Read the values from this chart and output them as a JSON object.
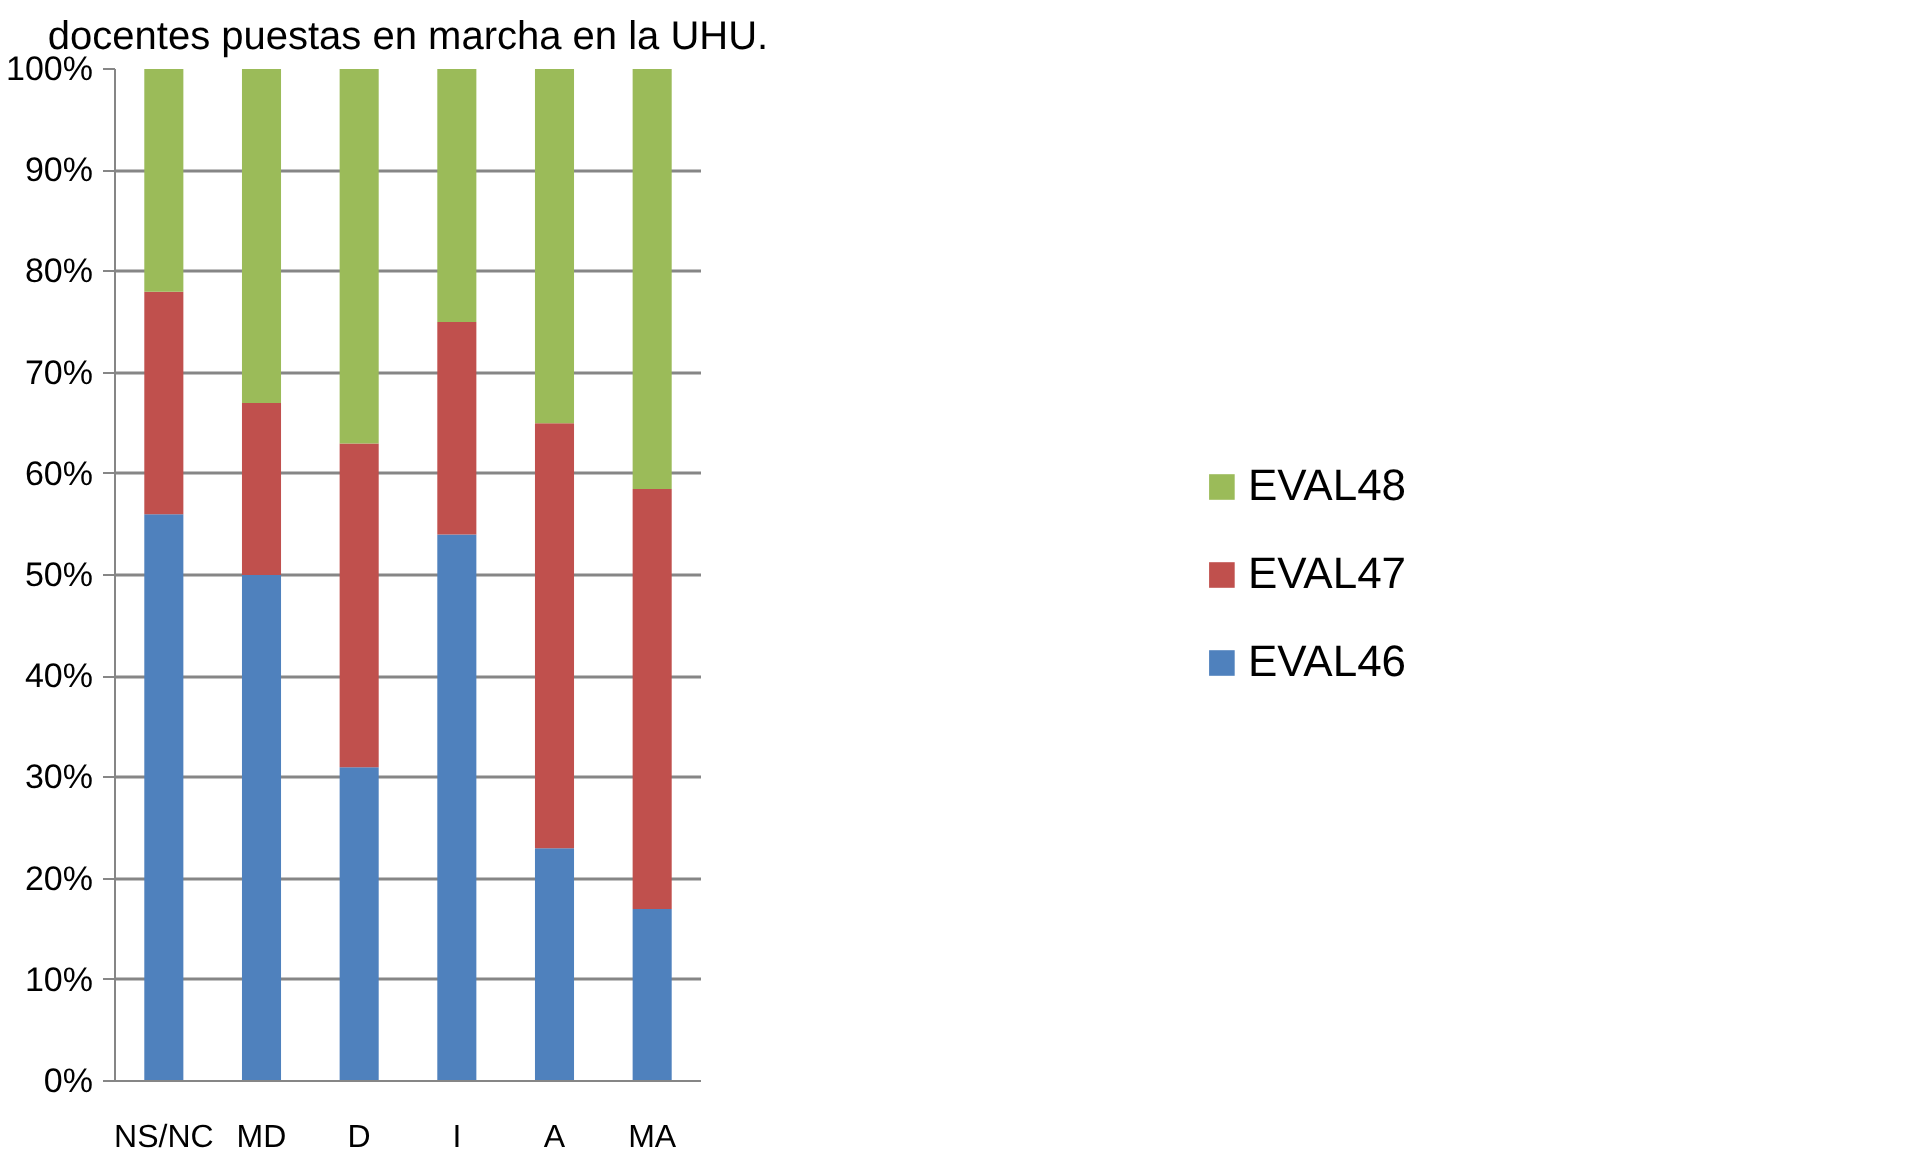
{
  "chart_data": {
    "type": "bar",
    "title": "docentes puestas en marcha en la UHU.",
    "categories": [
      "NS/NC",
      "MD",
      "D",
      "I",
      "A",
      "MA"
    ],
    "stacked": true,
    "series": [
      {
        "name": "EVAL46",
        "color": "#4f81bd",
        "values": [
          56,
          50,
          31,
          54,
          23,
          17
        ]
      },
      {
        "name": "EVAL47",
        "color": "#c0504d",
        "values": [
          22,
          17,
          32,
          21,
          42,
          41.5
        ]
      },
      {
        "name": "EVAL48",
        "color": "#9bbb59",
        "values": [
          22,
          33,
          37,
          25,
          35,
          41.5
        ]
      }
    ],
    "ylim": [
      0,
      100
    ],
    "yticks": [
      {
        "value": 0,
        "label": "0%"
      },
      {
        "value": 10,
        "label": "10%"
      },
      {
        "value": 20,
        "label": "20%"
      },
      {
        "value": 30,
        "label": "30%"
      },
      {
        "value": 40,
        "label": "40%"
      },
      {
        "value": 50,
        "label": "50%"
      },
      {
        "value": 60,
        "label": "60%"
      },
      {
        "value": 70,
        "label": "70%"
      },
      {
        "value": 80,
        "label": "80%"
      },
      {
        "value": 90,
        "label": "90%"
      },
      {
        "value": 100,
        "label": "100%"
      }
    ],
    "grid": "y",
    "legend": "right"
  }
}
